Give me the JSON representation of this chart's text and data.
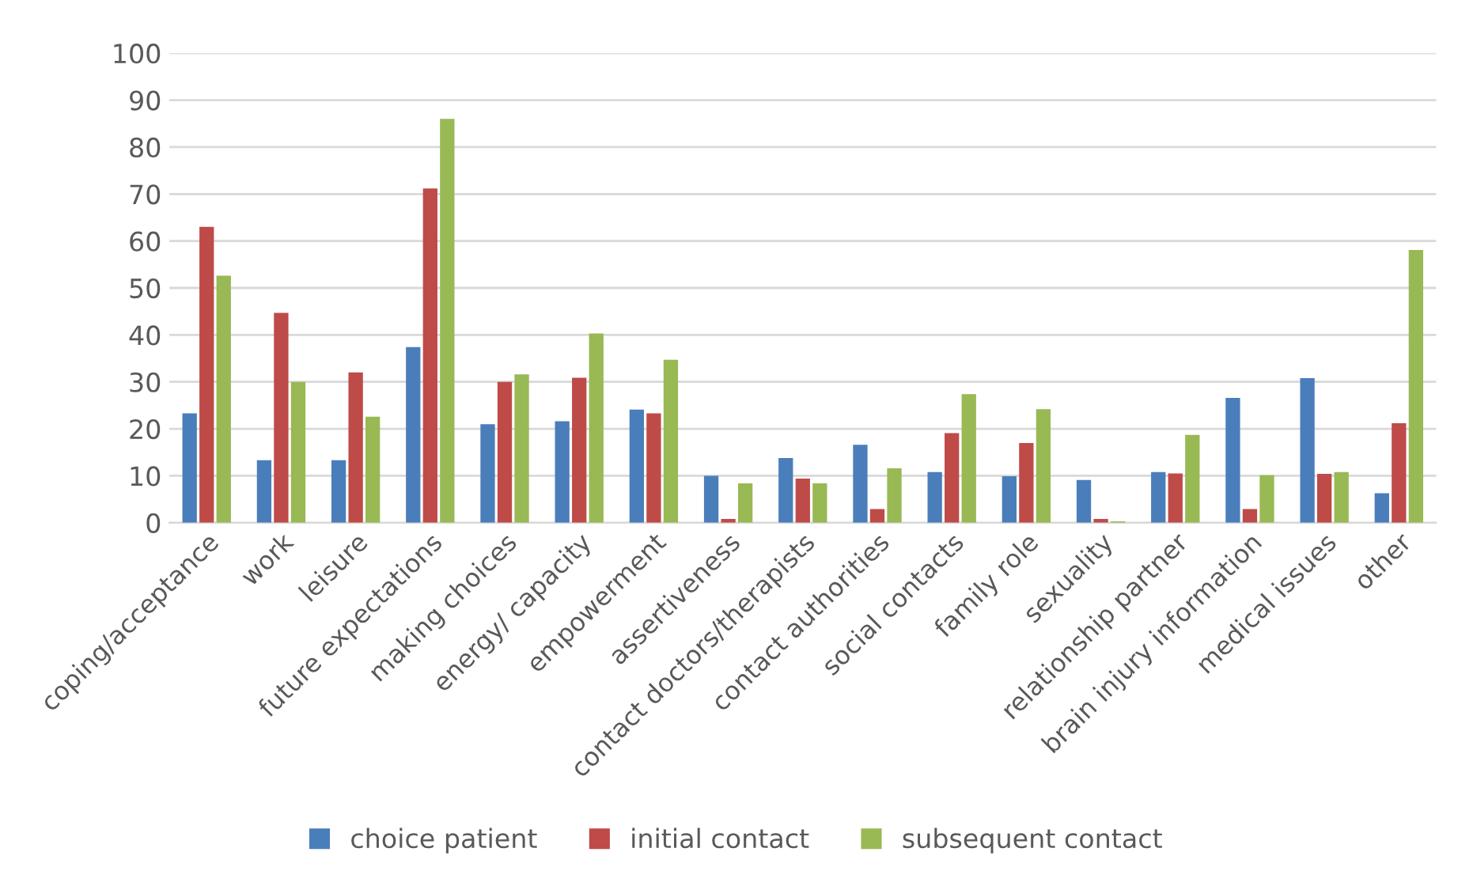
{
  "chart_data": {
    "type": "bar",
    "categories": [
      "coping/acceptance",
      "work",
      "leisure",
      "future expectations",
      "making choices",
      "energy/ capacity",
      "empowerment",
      "assertiveness",
      "contact doctors/therapists",
      "contact authorities",
      "social contacts",
      "family role",
      "sexuality",
      "relationship partner",
      "brain injury information",
      "medical issues",
      "other"
    ],
    "series": [
      {
        "name": "choice patient",
        "color": "#4a7ebb",
        "values": [
          23.3,
          13.3,
          13.3,
          37.4,
          21,
          21.6,
          24.1,
          10,
          13.8,
          16.6,
          10.8,
          9.9,
          9.1,
          10.8,
          26.6,
          30.8,
          6.3
        ]
      },
      {
        "name": "initial contact",
        "color": "#be4b48",
        "values": [
          63,
          44.7,
          32,
          71.2,
          30,
          30.9,
          23.3,
          0.8,
          9.4,
          2.9,
          19.1,
          17,
          0.8,
          10.5,
          2.9,
          10.4,
          21.2
        ]
      },
      {
        "name": "subsequent contact",
        "color": "#98b954",
        "values": [
          52.6,
          30,
          22.6,
          86,
          31.6,
          40.3,
          34.7,
          8.4,
          8.4,
          11.6,
          27.4,
          24.2,
          0.3,
          18.7,
          10.1,
          10.8,
          58.1
        ]
      }
    ],
    "ylim": [
      0,
      100
    ],
    "yticks": [
      0,
      10,
      20,
      30,
      40,
      50,
      60,
      70,
      80,
      90,
      100
    ],
    "grid": "y",
    "legend": "bottom"
  }
}
